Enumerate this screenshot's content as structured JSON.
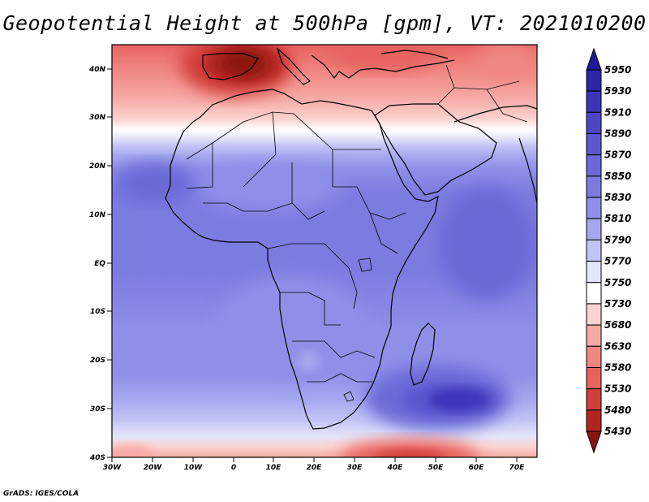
{
  "title": "Geopotential Height at 500hPa [gpm], VT: 2021010200",
  "credit": "GrADS: IGES/COLA",
  "map": {
    "lat_ticks": [
      "40N",
      "30N",
      "20N",
      "10N",
      "EQ",
      "10S",
      "20S",
      "30S",
      "40S"
    ],
    "lon_ticks": [
      "30W",
      "20W",
      "10W",
      "0",
      "10E",
      "20E",
      "30E",
      "40E",
      "50E",
      "60E",
      "70E"
    ]
  },
  "colorbar": {
    "labels": [
      "5950",
      "5930",
      "5910",
      "5890",
      "5870",
      "5850",
      "5830",
      "5810",
      "5790",
      "5770",
      "5750",
      "5730",
      "5680",
      "5630",
      "5580",
      "5530",
      "5480",
      "5430"
    ],
    "colors": [
      "#1e1a9a",
      "#2d26a8",
      "#3b36b8",
      "#4b46c4",
      "#5a58cf",
      "#6a6ad8",
      "#7b7ce0",
      "#8e90e8",
      "#a6a8ef",
      "#c2c4f5",
      "#e6e6fa",
      "#ffffff",
      "#fbd3cf",
      "#f6aaa6",
      "#f08682",
      "#e8625e",
      "#d23e3a",
      "#b02520",
      "#8c1210"
    ]
  }
}
